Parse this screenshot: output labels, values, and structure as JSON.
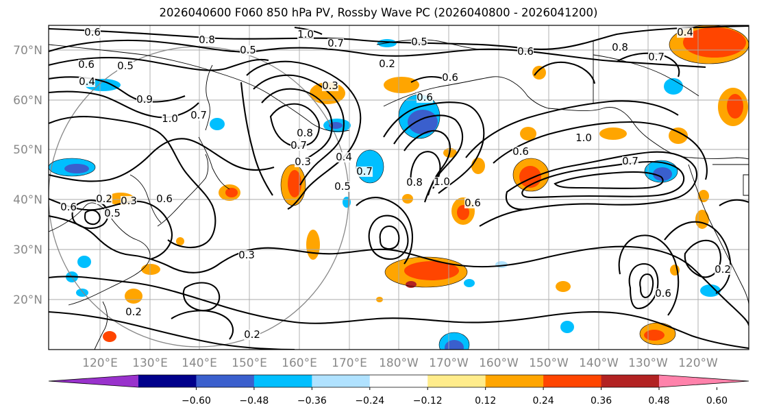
{
  "title": "2026040600 F060 850 hPa PV, Rossby Wave PC (2026040800 - 2026041200)",
  "lat_labels": [
    "70°N",
    "60°N",
    "50°N",
    "40°N",
    "30°N",
    "20°N"
  ],
  "lon_labels": [
    "120°E",
    "130°E",
    "140°E",
    "150°E",
    "160°E",
    "170°E",
    "180°W",
    "170°W",
    "160°W",
    "150°W",
    "140°W",
    "130°W",
    "120°W"
  ],
  "colorbar": {
    "tick_labels": [
      "−0.60",
      "−0.48",
      "−0.36",
      "−0.24",
      "−0.12",
      "0.12",
      "0.24",
      "0.36",
      "0.48",
      "0.60"
    ],
    "colors": [
      "#9932cc",
      "#00008b",
      "#3a5fcd",
      "#00bfff",
      "#b0e2ff",
      "#ffffff",
      "#ffec8b",
      "#ffa500",
      "#ff4500",
      "#b22222",
      "#ff82ab"
    ]
  },
  "contour_labels": [
    "0.6",
    "1.0",
    "0.8",
    "0.5",
    "0.7",
    "0.5",
    "0.6",
    "0.8",
    "0.4",
    "0.7",
    "0.6",
    "0.5",
    "0.4",
    "0.9",
    "0.2",
    "0.3",
    "0.6",
    "0.6",
    "1.0",
    "0.7",
    "0.8",
    "0.4",
    "0.3",
    "0.7",
    "0.6",
    "1.0",
    "0.7",
    "0.6",
    "0.8",
    "1.0",
    "0.7",
    "0.5",
    "0.2",
    "0.3",
    "0.6",
    "0.3",
    "0.2",
    "0.2",
    "0.6",
    "0.5",
    "0.6",
    "0.2"
  ]
}
